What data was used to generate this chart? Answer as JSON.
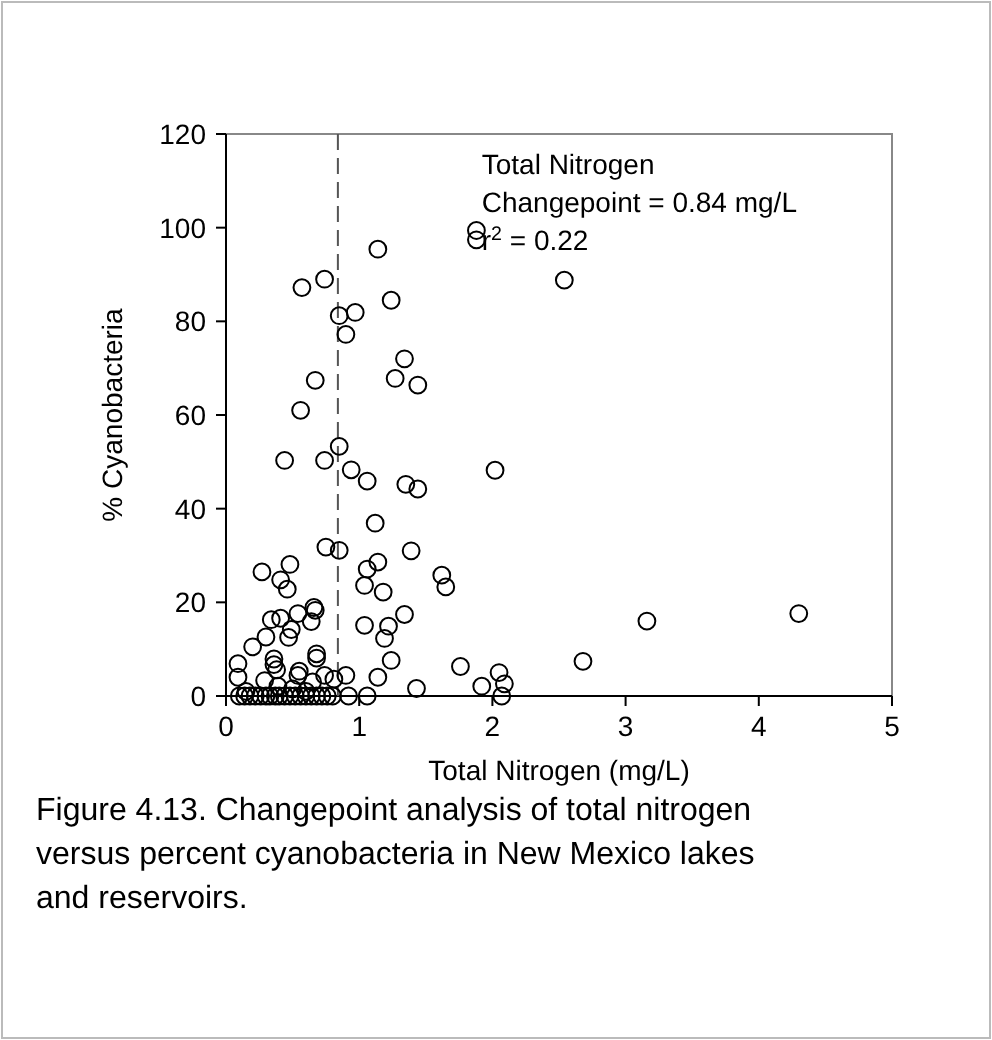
{
  "chart_data": {
    "type": "scatter",
    "xlabel": "Total Nitrogen (mg/L)",
    "ylabel": "% Cyanobacteria",
    "xlim": [
      0,
      5
    ],
    "xticks": [
      0,
      1,
      2,
      3,
      4,
      5
    ],
    "ylim": [
      0,
      120
    ],
    "yticks": [
      0,
      20,
      40,
      60,
      80,
      100,
      120
    ],
    "grid": false,
    "marker": "circle",
    "ref_lines": [
      {
        "axis": "x",
        "value": 0.84,
        "line_style": "dashed",
        "color": "#555555"
      }
    ],
    "annotations": [
      "Total Nitrogen",
      "Changepoint = 0.84 mg/L",
      "r$^{2}$ = 0.22",
      "Figure 4.13. Changepoint analysis of total nitrogen versus percent cyanobacteria in New Mexico lakes and reservoirs."
    ],
    "series": [
      {
        "color": "#000000",
        "x": [
          1.14,
          1.88,
          1.88,
          2.54,
          0.57,
          0.74,
          1.24,
          0.85,
          0.97,
          0.9,
          1.34,
          1.27,
          1.44,
          0.67,
          0.56,
          0.44,
          0.74,
          0.85,
          0.94,
          1.06,
          2.02,
          1.35,
          1.44,
          1.12,
          0.75,
          0.85,
          1.39,
          1.14,
          1.06,
          1.04,
          1.18,
          1.62,
          1.65,
          0.27,
          0.48,
          0.41,
          0.46,
          4.3,
          3.16,
          1.34,
          1.04,
          1.22,
          0.34,
          0.41,
          0.54,
          0.64,
          0.66,
          0.67,
          0.49,
          0.47,
          0.3,
          0.2,
          1.19,
          0.09,
          0.09,
          0.36,
          0.36,
          0.38,
          0.29,
          0.39,
          0.54,
          0.55,
          0.68,
          0.68,
          0.65,
          0.74,
          0.81,
          0.9,
          0.92,
          1.06,
          1.14,
          1.24,
          1.43,
          1.76,
          1.92,
          2.05,
          2.09,
          2.07,
          2.68,
          0.1,
          0.14,
          0.18,
          0.22,
          0.26,
          0.3,
          0.33,
          0.37,
          0.4,
          0.44,
          0.48,
          0.52,
          0.56,
          0.6,
          0.64,
          0.68,
          0.72,
          0.76,
          0.8,
          0.15,
          0.5,
          0.6
        ],
        "values": [
          95.4,
          99.4,
          97.4,
          88.8,
          87.2,
          89,
          84.5,
          81.2,
          81.9,
          77.2,
          72,
          67.8,
          66.4,
          67.4,
          61,
          50.3,
          50.3,
          53.3,
          48.3,
          45.9,
          48.2,
          45.2,
          44.2,
          36.9,
          31.8,
          31.1,
          31,
          28.6,
          27.1,
          23.6,
          22.2,
          25.8,
          23.3,
          26.5,
          28.1,
          24.8,
          22.8,
          17.6,
          16,
          17.4,
          15.1,
          14.9,
          16.3,
          16.6,
          17.6,
          15.9,
          18.9,
          18.3,
          14.2,
          12.5,
          12.6,
          10.5,
          12.3,
          6.9,
          4,
          7.9,
          6.7,
          5.6,
          3.3,
          2.1,
          4.4,
          5.3,
          9,
          8.1,
          3,
          4.4,
          3.6,
          4.4,
          0,
          0,
          4,
          7.6,
          1.6,
          6.3,
          2.1,
          5,
          2.6,
          0,
          7.4,
          0,
          0,
          0,
          0,
          0,
          0,
          0,
          0,
          0,
          0,
          0,
          0,
          0,
          0,
          0,
          0,
          0,
          0,
          0,
          1,
          1.5,
          1
        ]
      }
    ]
  }
}
